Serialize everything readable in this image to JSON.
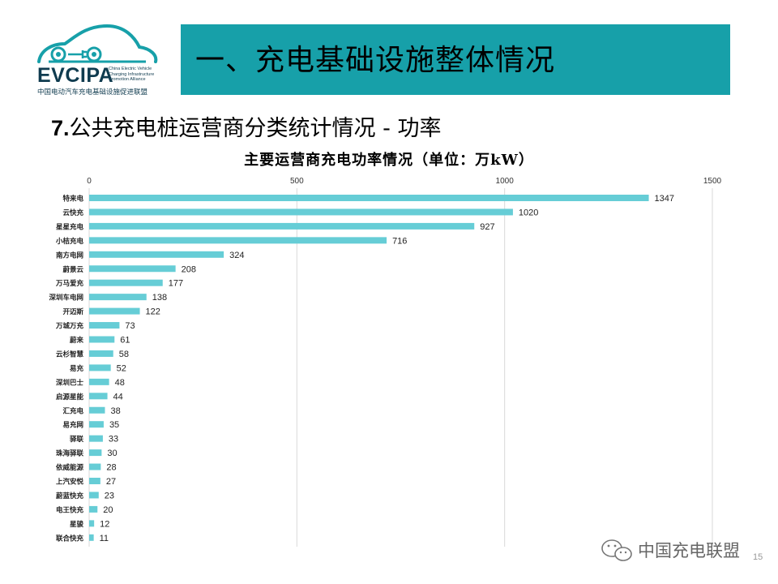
{
  "logo": {
    "brand": "EVCIPA",
    "subtitle_lines": [
      "China Electric Vehicle",
      "Charging Infrastructure",
      "Promotion Alliance"
    ],
    "chinese_name": "中国电动汽车充电基础设施促进联盟",
    "brand_color": "#17a0a9"
  },
  "header": {
    "title": "一、充电基础设施整体情况",
    "bar_color": "#17a0a9"
  },
  "section": {
    "number": "7.",
    "title": "公共充电桩运营商分类统计情况 - 功率"
  },
  "chart_data": {
    "type": "bar",
    "orientation": "horizontal",
    "title": "主要运营商充电功率情况（单位：万kW）",
    "xlim": [
      0,
      1500
    ],
    "ticks": [
      0,
      500,
      1000,
      1500
    ],
    "tick_labels": [
      "0",
      "500",
      "1000",
      "1500"
    ],
    "grid": true,
    "bar_color": "#66cdd6",
    "categories": [
      "特来电",
      "云快充",
      "星星充电",
      "小桔充电",
      "南方电网",
      "蔚景云",
      "万马爱充",
      "深圳车电网",
      "开迈斯",
      "万城万充",
      "蔚来",
      "云杉智慧",
      "易充",
      "深圳巴士",
      "启源星能",
      "汇充电",
      "易充网",
      "驿联",
      "珠海驿联",
      "依威能源",
      "上汽安悦",
      "蔚蓝快充",
      "电王快充",
      "星骏",
      "联合快充"
    ],
    "values": [
      1347,
      1020,
      927,
      716,
      324,
      208,
      177,
      138,
      122,
      73,
      61,
      58,
      52,
      48,
      44,
      38,
      35,
      33,
      30,
      28,
      27,
      23,
      20,
      12,
      11
    ]
  },
  "footer": {
    "watermark": "中国充电联盟",
    "page_number": "15"
  }
}
